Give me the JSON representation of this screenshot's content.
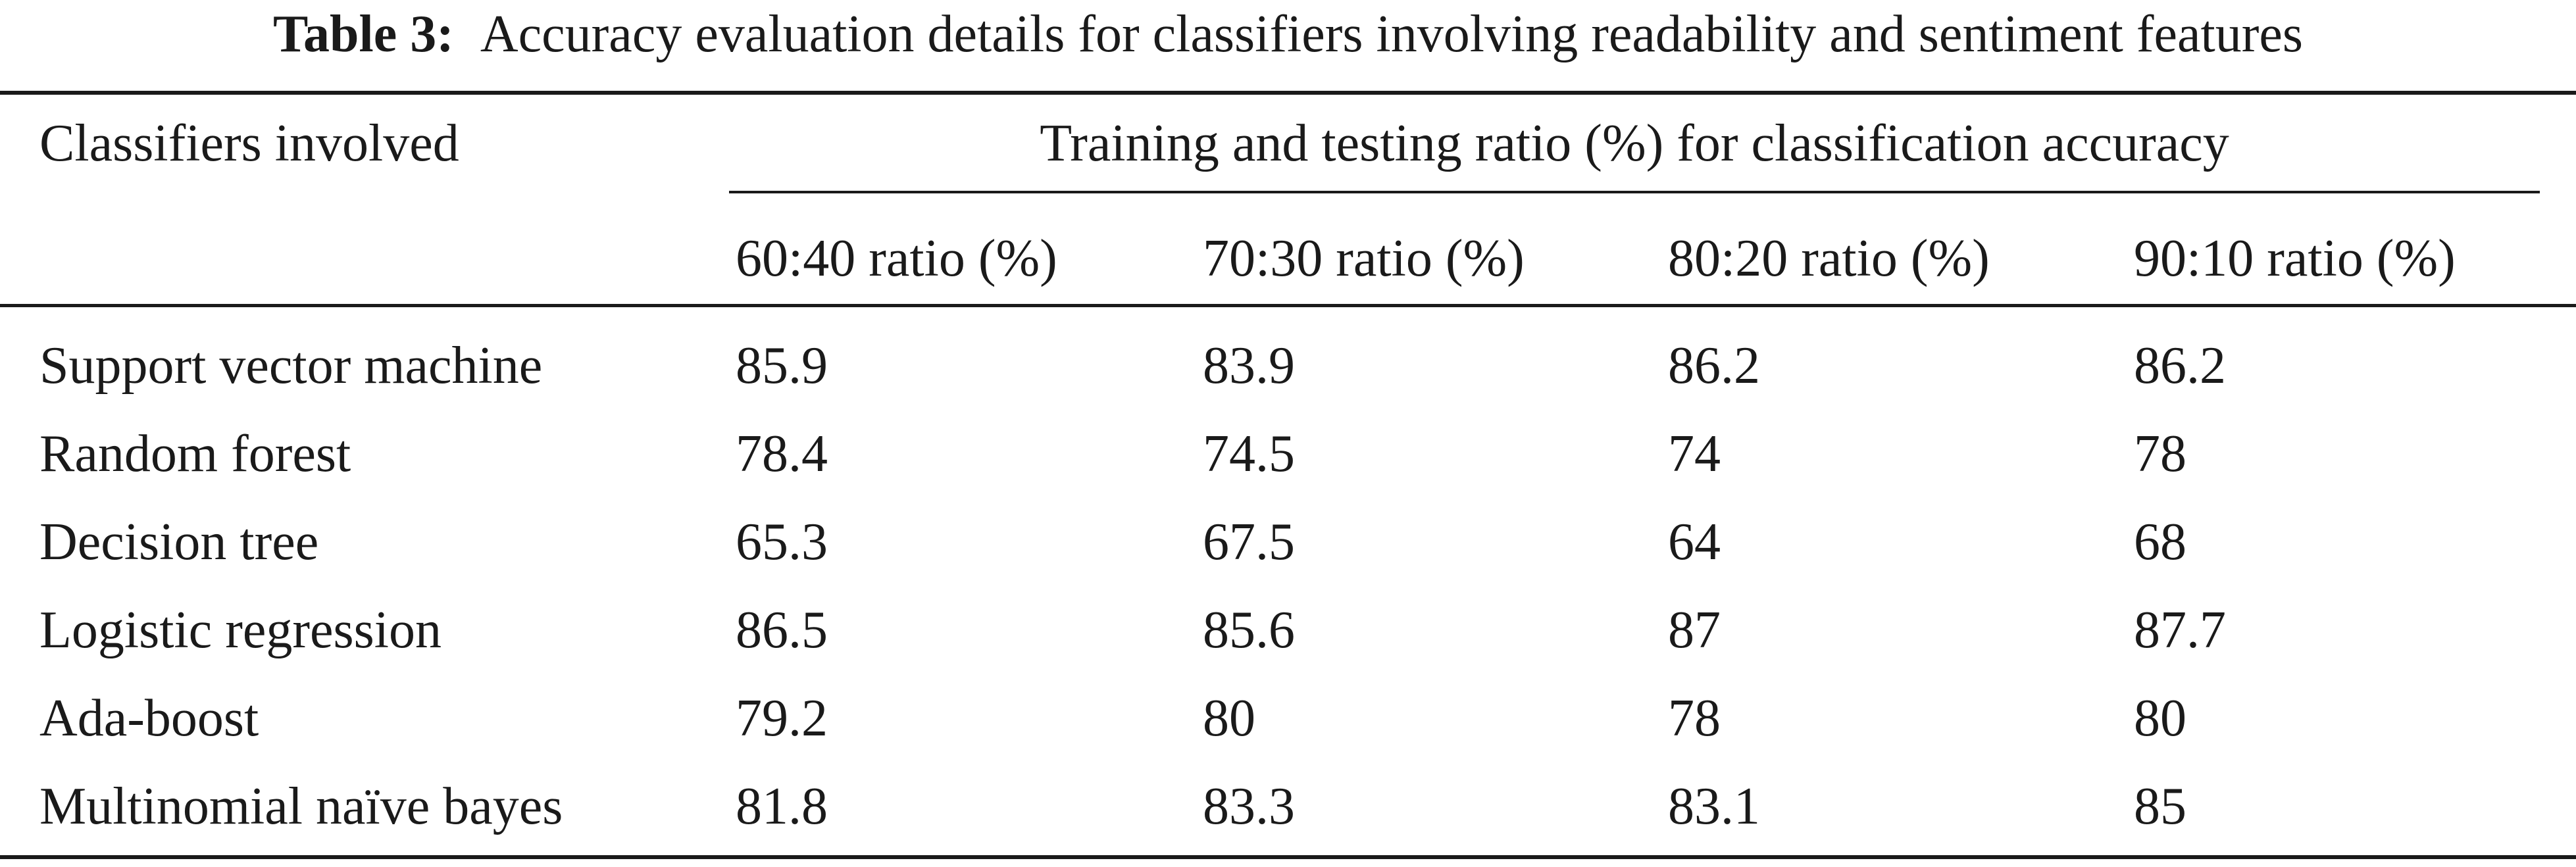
{
  "caption": {
    "label": "Table 3:",
    "text": "Accuracy evaluation details for classifiers involving readability and sentiment features"
  },
  "table": {
    "header": {
      "first_column": "Classifiers involved",
      "spanning": "Training and testing ratio (%) for classification accuracy",
      "sub_columns": [
        "60:40 ratio (%)",
        "70:30 ratio (%)",
        "80:20 ratio (%)",
        "90:10 ratio (%)"
      ]
    },
    "rows": [
      [
        "Support vector machine",
        "85.9",
        "83.9",
        "86.2",
        "86.2"
      ],
      [
        "Random forest",
        "78.4",
        "74.5",
        "74",
        "78"
      ],
      [
        "Decision tree",
        "65.3",
        "67.5",
        "64",
        "68"
      ],
      [
        "Logistic regression",
        "86.5",
        "85.6",
        "87",
        "87.7"
      ],
      [
        "Ada-boost",
        "79.2",
        "80",
        "78",
        "80"
      ],
      [
        "Multinomial naïve bayes",
        "81.8",
        "83.3",
        "83.1",
        "85"
      ]
    ]
  }
}
